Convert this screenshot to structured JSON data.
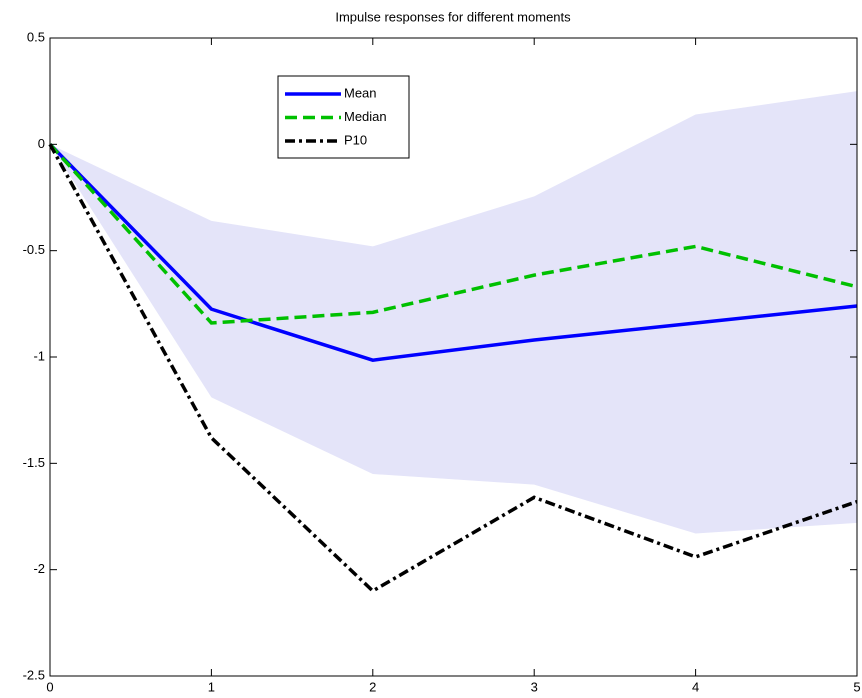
{
  "chart_data": {
    "type": "line",
    "title": "Impulse responses for different moments",
    "x": [
      0,
      1,
      2,
      3,
      4,
      5
    ],
    "band": {
      "color": "#e4e4f9",
      "upper": [
        0,
        -0.36,
        -0.48,
        -0.245,
        0.14,
        0.25
      ],
      "lower": [
        0,
        -1.19,
        -1.55,
        -1.6,
        -1.83,
        -1.78
      ]
    },
    "series": [
      {
        "name": "Mean",
        "color": "#0000ff",
        "style": "solid",
        "values": [
          0,
          -0.775,
          -1.015,
          -0.92,
          -0.84,
          -0.76
        ]
      },
      {
        "name": "Median",
        "color": "#00c000",
        "style": "dashed",
        "values": [
          0,
          -0.84,
          -0.79,
          -0.615,
          -0.48,
          -0.67
        ]
      },
      {
        "name": "P10",
        "color": "#000000",
        "style": "dashdot",
        "values": [
          0,
          -1.38,
          -2.1,
          -1.66,
          -1.94,
          -1.68
        ]
      }
    ],
    "xlim": [
      0,
      5
    ],
    "xticks": [
      0,
      1,
      2,
      3,
      4,
      5
    ],
    "ylim": [
      -2.5,
      0.5
    ],
    "yticks": [
      -2.5,
      -2,
      -1.5,
      -1,
      -0.5,
      0,
      0.5
    ],
    "grid": false
  }
}
